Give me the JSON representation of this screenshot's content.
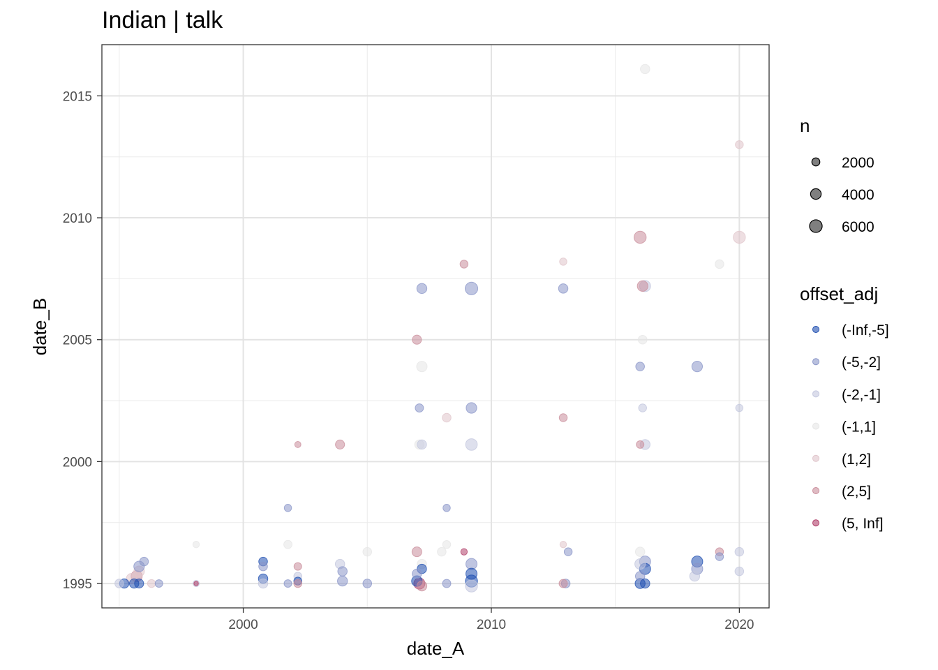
{
  "chart_data": {
    "type": "scatter",
    "title": "Indian | talk",
    "xlabel": "date_A",
    "ylabel": "date_B",
    "xlim": [
      1994.3,
      2021.2
    ],
    "ylim": [
      1994.0,
      2017.1
    ],
    "x_ticks": [
      2000,
      2010,
      2020
    ],
    "y_ticks": [
      1995,
      2000,
      2005,
      2010,
      2015
    ],
    "grid": true,
    "legend_position": "right",
    "size_legend": {
      "title": "n",
      "entries": [
        {
          "label": "2000",
          "value": 2000
        },
        {
          "label": "4000",
          "value": 4000
        },
        {
          "label": "6000",
          "value": 6000
        }
      ]
    },
    "color_legend": {
      "title": "offset_adj",
      "entries": [
        {
          "label": "(-Inf,-5]",
          "color": "#1f4fb0"
        },
        {
          "label": "(-5,-2]",
          "color": "#8a96c8"
        },
        {
          "label": "(-2,-1]",
          "color": "#c3c7de"
        },
        {
          "label": "(-1,1]",
          "color": "#e6e6e6"
        },
        {
          "label": "(1,2]",
          "color": "#e0c5cb"
        },
        {
          "label": "(2,5]",
          "color": "#c98d9b"
        },
        {
          "label": "(5, Inf]",
          "color": "#b0406a"
        }
      ]
    },
    "points": [
      {
        "x": 2016.2,
        "y": 2016.1,
        "n": 3000,
        "cat": "(-1,1]"
      },
      {
        "x": 2020.0,
        "y": 2013.0,
        "n": 2000,
        "cat": "(1,2]"
      },
      {
        "x": 2016.0,
        "y": 2009.2,
        "n": 5500,
        "cat": "(2,5]"
      },
      {
        "x": 2020.0,
        "y": 2009.2,
        "n": 5500,
        "cat": "(1,2]"
      },
      {
        "x": 2012.9,
        "y": 2008.2,
        "n": 1600,
        "cat": "(1,2]"
      },
      {
        "x": 2019.2,
        "y": 2008.1,
        "n": 2500,
        "cat": "(-1,1]"
      },
      {
        "x": 2008.9,
        "y": 2008.1,
        "n": 2000,
        "cat": "(2,5]"
      },
      {
        "x": 2007.2,
        "y": 2007.1,
        "n": 3500,
        "cat": "(-5,-2]"
      },
      {
        "x": 2009.2,
        "y": 2007.1,
        "n": 6000,
        "cat": "(-5,-2]"
      },
      {
        "x": 2012.9,
        "y": 2007.1,
        "n": 3000,
        "cat": "(-5,-2]"
      },
      {
        "x": 2016.2,
        "y": 2007.2,
        "n": 4500,
        "cat": "(-2,-1]"
      },
      {
        "x": 2016.1,
        "y": 2007.2,
        "n": 4000,
        "cat": "(2,5]"
      },
      {
        "x": 2007.0,
        "y": 2005.0,
        "n": 2800,
        "cat": "(2,5]"
      },
      {
        "x": 2016.1,
        "y": 2005.0,
        "n": 2500,
        "cat": "(-1,1]"
      },
      {
        "x": 2007.2,
        "y": 2003.9,
        "n": 3900,
        "cat": "(-1,1]"
      },
      {
        "x": 2016.0,
        "y": 2003.9,
        "n": 2500,
        "cat": "(-5,-2]"
      },
      {
        "x": 2018.3,
        "y": 2003.9,
        "n": 4000,
        "cat": "(-5,-2]"
      },
      {
        "x": 2007.1,
        "y": 2002.2,
        "n": 2200,
        "cat": "(-5,-2]"
      },
      {
        "x": 2009.2,
        "y": 2002.2,
        "n": 4000,
        "cat": "(-5,-2]"
      },
      {
        "x": 2016.1,
        "y": 2002.2,
        "n": 2000,
        "cat": "(-2,-1]"
      },
      {
        "x": 2020.0,
        "y": 2002.2,
        "n": 1600,
        "cat": "(-2,-1]"
      },
      {
        "x": 2008.2,
        "y": 2001.8,
        "n": 2500,
        "cat": "(1,2]"
      },
      {
        "x": 2012.9,
        "y": 2001.8,
        "n": 2000,
        "cat": "(2,5]"
      },
      {
        "x": 2002.2,
        "y": 2000.7,
        "n": 1000,
        "cat": "(2,5]"
      },
      {
        "x": 2003.9,
        "y": 2000.7,
        "n": 2800,
        "cat": "(2,5]"
      },
      {
        "x": 2007.1,
        "y": 2000.7,
        "n": 3000,
        "cat": "(-1,1]"
      },
      {
        "x": 2007.2,
        "y": 2000.7,
        "n": 3000,
        "cat": "(-2,-1]"
      },
      {
        "x": 2009.2,
        "y": 2000.7,
        "n": 5000,
        "cat": "(-2,-1]"
      },
      {
        "x": 2016.0,
        "y": 2000.7,
        "n": 1800,
        "cat": "(2,5]"
      },
      {
        "x": 2016.2,
        "y": 2000.7,
        "n": 3500,
        "cat": "(-2,-1]"
      },
      {
        "x": 2001.8,
        "y": 1998.1,
        "n": 1600,
        "cat": "(-5,-2]"
      },
      {
        "x": 2008.2,
        "y": 1998.1,
        "n": 1600,
        "cat": "(-5,-2]"
      },
      {
        "x": 1998.1,
        "y": 1996.6,
        "n": 1200,
        "cat": "(-1,1]"
      },
      {
        "x": 2001.8,
        "y": 1996.6,
        "n": 2200,
        "cat": "(-1,1]"
      },
      {
        "x": 2012.9,
        "y": 1996.6,
        "n": 1200,
        "cat": "(1,2]"
      },
      {
        "x": 2008.2,
        "y": 1996.6,
        "n": 2000,
        "cat": "(-1,1]"
      },
      {
        "x": 2005.0,
        "y": 1996.3,
        "n": 2500,
        "cat": "(-1,1]"
      },
      {
        "x": 2007.0,
        "y": 1996.3,
        "n": 3300,
        "cat": "(2,5]"
      },
      {
        "x": 2008.0,
        "y": 1996.3,
        "n": 2500,
        "cat": "(-1,1]"
      },
      {
        "x": 2008.9,
        "y": 1996.3,
        "n": 1200,
        "cat": "(5, Inf]"
      },
      {
        "x": 2013.1,
        "y": 1996.3,
        "n": 2000,
        "cat": "(-5,-2]"
      },
      {
        "x": 2016.0,
        "y": 1996.3,
        "n": 3000,
        "cat": "(-1,1]"
      },
      {
        "x": 2019.2,
        "y": 1996.3,
        "n": 2000,
        "cat": "(2,5]"
      },
      {
        "x": 2020.0,
        "y": 1996.3,
        "n": 2500,
        "cat": "(-2,-1]"
      },
      {
        "x": 2019.2,
        "y": 1996.1,
        "n": 2000,
        "cat": "(-5,-2]"
      },
      {
        "x": 2016.2,
        "y": 1995.9,
        "n": 4500,
        "cat": "(-5,-2]"
      },
      {
        "x": 2016.0,
        "y": 1995.8,
        "n": 4000,
        "cat": "(-2,-1]"
      },
      {
        "x": 2016.2,
        "y": 1995.6,
        "n": 4500,
        "cat": "(-Inf,-5]"
      },
      {
        "x": 2018.3,
        "y": 1995.9,
        "n": 4500,
        "cat": "(-Inf,-5]"
      },
      {
        "x": 2018.3,
        "y": 1995.6,
        "n": 4500,
        "cat": "(-5,-2]"
      },
      {
        "x": 2018.2,
        "y": 1995.3,
        "n": 3500,
        "cat": "(-2,-1]"
      },
      {
        "x": 2020.0,
        "y": 1995.5,
        "n": 2500,
        "cat": "(-2,-1]"
      },
      {
        "x": 2016.0,
        "y": 1995.3,
        "n": 3000,
        "cat": "(-5,-2]"
      },
      {
        "x": 2016.0,
        "y": 1995.0,
        "n": 3500,
        "cat": "(-Inf,-5]"
      },
      {
        "x": 2016.2,
        "y": 1995.0,
        "n": 3000,
        "cat": "(-Inf,-5]"
      },
      {
        "x": 2012.9,
        "y": 1995.0,
        "n": 2200,
        "cat": "(2,5]"
      },
      {
        "x": 2013.0,
        "y": 1995.0,
        "n": 2500,
        "cat": "(-5,-2]"
      },
      {
        "x": 2009.2,
        "y": 1995.8,
        "n": 4500,
        "cat": "(-5,-2]"
      },
      {
        "x": 2009.2,
        "y": 1995.4,
        "n": 4500,
        "cat": "(-Inf,-5]"
      },
      {
        "x": 2009.2,
        "y": 1995.1,
        "n": 5500,
        "cat": "(-Inf,-5]"
      },
      {
        "x": 2009.2,
        "y": 1994.9,
        "n": 5500,
        "cat": "(-2,-1]"
      },
      {
        "x": 2008.2,
        "y": 1995.0,
        "n": 2200,
        "cat": "(-5,-2]"
      },
      {
        "x": 2007.2,
        "y": 1995.8,
        "n": 3000,
        "cat": "(-1,1]"
      },
      {
        "x": 2007.2,
        "y": 1995.6,
        "n": 3000,
        "cat": "(-Inf,-5]"
      },
      {
        "x": 2007.0,
        "y": 1995.4,
        "n": 3000,
        "cat": "(-5,-2]"
      },
      {
        "x": 2007.0,
        "y": 1995.1,
        "n": 4000,
        "cat": "(-Inf,-5]"
      },
      {
        "x": 2007.1,
        "y": 1995.0,
        "n": 4500,
        "cat": "(5, Inf]"
      },
      {
        "x": 2007.2,
        "y": 1994.9,
        "n": 3500,
        "cat": "(2,5]"
      },
      {
        "x": 2005.0,
        "y": 1995.0,
        "n": 2500,
        "cat": "(-5,-2]"
      },
      {
        "x": 2003.9,
        "y": 1995.8,
        "n": 3000,
        "cat": "(-2,-1]"
      },
      {
        "x": 2004.0,
        "y": 1995.5,
        "n": 3000,
        "cat": "(-5,-2]"
      },
      {
        "x": 2004.0,
        "y": 1995.1,
        "n": 3500,
        "cat": "(-5,-2]"
      },
      {
        "x": 2002.2,
        "y": 1995.7,
        "n": 1800,
        "cat": "(2,5]"
      },
      {
        "x": 2002.2,
        "y": 1995.3,
        "n": 2000,
        "cat": "(-2,-1]"
      },
      {
        "x": 2002.2,
        "y": 1995.1,
        "n": 2000,
        "cat": "(-Inf,-5]"
      },
      {
        "x": 2002.2,
        "y": 1995.0,
        "n": 2000,
        "cat": "(2,5]"
      },
      {
        "x": 2001.8,
        "y": 1995.0,
        "n": 1800,
        "cat": "(-5,-2]"
      },
      {
        "x": 2000.8,
        "y": 1995.9,
        "n": 2500,
        "cat": "(-Inf,-5]"
      },
      {
        "x": 2000.8,
        "y": 1995.7,
        "n": 2500,
        "cat": "(-5,-2]"
      },
      {
        "x": 2000.8,
        "y": 1995.2,
        "n": 3000,
        "cat": "(-Inf,-5]"
      },
      {
        "x": 2000.8,
        "y": 1995.0,
        "n": 3000,
        "cat": "(-2,-1]"
      },
      {
        "x": 1998.1,
        "y": 1995.0,
        "n": 1100,
        "cat": "(-2,-1]"
      },
      {
        "x": 1998.1,
        "y": 1995.0,
        "n": 400,
        "cat": "(5, Inf]"
      },
      {
        "x": 1996.6,
        "y": 1995.0,
        "n": 1800,
        "cat": "(-5,-2]"
      },
      {
        "x": 1996.3,
        "y": 1995.0,
        "n": 2000,
        "cat": "(1,2]"
      },
      {
        "x": 1995.0,
        "y": 1995.0,
        "n": 2500,
        "cat": "(-2,-1]"
      },
      {
        "x": 1995.2,
        "y": 1995.0,
        "n": 3000,
        "cat": "(-Inf,-5]"
      },
      {
        "x": 1995.6,
        "y": 1995.0,
        "n": 3000,
        "cat": "(-Inf,-5]"
      },
      {
        "x": 1995.8,
        "y": 1995.0,
        "n": 2800,
        "cat": "(-Inf,-5]"
      },
      {
        "x": 1995.5,
        "y": 1995.2,
        "n": 4000,
        "cat": "(1,2]"
      },
      {
        "x": 1995.7,
        "y": 1995.3,
        "n": 4500,
        "cat": "(2,5]"
      },
      {
        "x": 1995.8,
        "y": 1995.5,
        "n": 4000,
        "cat": "(1,2]"
      },
      {
        "x": 1995.8,
        "y": 1995.7,
        "n": 4000,
        "cat": "(-5,-2]"
      },
      {
        "x": 1996.0,
        "y": 1995.9,
        "n": 2500,
        "cat": "(-5,-2]"
      }
    ]
  }
}
